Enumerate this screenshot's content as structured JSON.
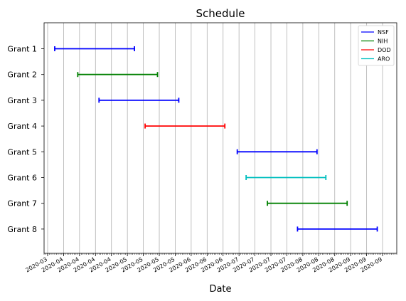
{
  "chart_data": {
    "type": "gantt",
    "title": "Schedule",
    "xlabel": "Date",
    "ylabel": "",
    "grid": {
      "x": true,
      "y": false
    },
    "legend_placement": "top-right",
    "legend": [
      {
        "name": "NSF",
        "color": "#0000ff"
      },
      {
        "name": "NIH",
        "color": "#008000"
      },
      {
        "name": "DOD",
        "color": "#ff0000"
      },
      {
        "name": "ARO",
        "color": "#00bfbf"
      }
    ],
    "rows": [
      {
        "label": "Grant 1",
        "agency": "NSF",
        "start": "2020-03-20",
        "end": "2020-05-04"
      },
      {
        "label": "Grant 2",
        "agency": "NIH",
        "start": "2020-04-02",
        "end": "2020-05-17"
      },
      {
        "label": "Grant 3",
        "agency": "NSF",
        "start": "2020-04-14",
        "end": "2020-05-29"
      },
      {
        "label": "Grant 4",
        "agency": "DOD",
        "start": "2020-05-10",
        "end": "2020-06-24"
      },
      {
        "label": "Grant 5",
        "agency": "NSF",
        "start": "2020-07-01",
        "end": "2020-08-15"
      },
      {
        "label": "Grant 6",
        "agency": "ARO",
        "start": "2020-07-06",
        "end": "2020-08-20"
      },
      {
        "label": "Grant 7",
        "agency": "NIH",
        "start": "2020-07-18",
        "end": "2020-09-01"
      },
      {
        "label": "Grant 8",
        "agency": "NSF",
        "start": "2020-08-04",
        "end": "2020-09-18"
      }
    ],
    "xlim": [
      "2020-03-14",
      "2020-09-29"
    ],
    "x_ticks": [
      "2020-03-16",
      "2020-03-25",
      "2020-04-03",
      "2020-04-12",
      "2020-04-21",
      "2020-04-30",
      "2020-05-09",
      "2020-05-18",
      "2020-05-27",
      "2020-06-05",
      "2020-06-14",
      "2020-06-23",
      "2020-07-02",
      "2020-07-11",
      "2020-07-20",
      "2020-07-29",
      "2020-08-07",
      "2020-08-16",
      "2020-08-25",
      "2020-09-03",
      "2020-09-12",
      "2020-09-21"
    ],
    "x_tick_labels": [
      "2020-03",
      "2020-04",
      "2020-04",
      "2020-04",
      "2020-04",
      "2020-05",
      "2020-05",
      "2020-05",
      "2020-05",
      "2020-06",
      "2020-06",
      "2020-06",
      "2020-07",
      "2020-07",
      "2020-07",
      "2020-07",
      "2020-08",
      "2020-08",
      "2020-08",
      "2020-09",
      "2020-09",
      "2020-09"
    ]
  }
}
